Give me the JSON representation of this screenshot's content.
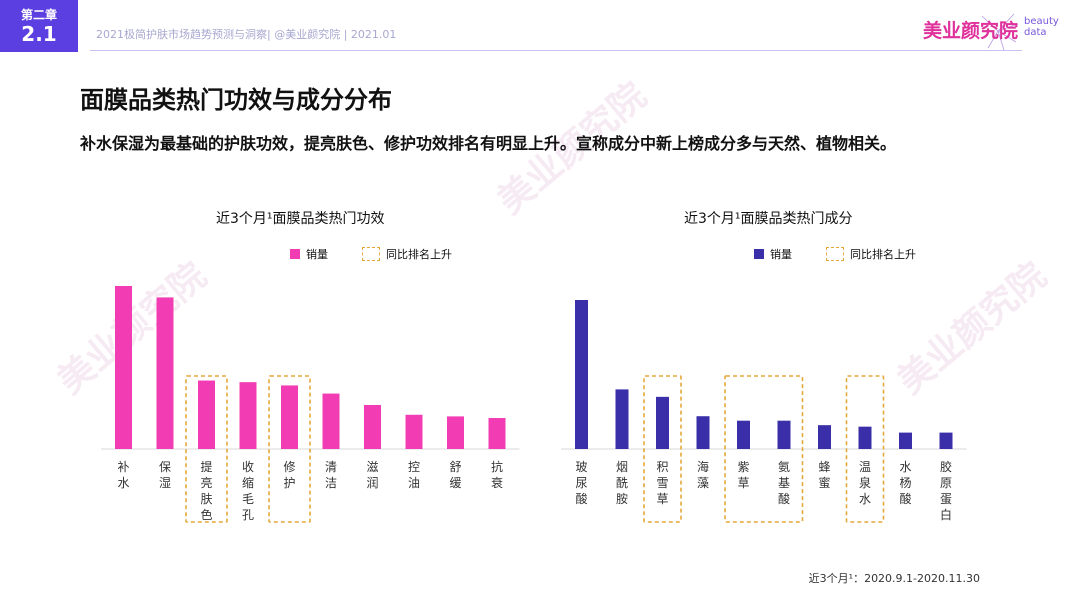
{
  "header": {
    "chapter_label": "第二章",
    "chapter_number": "2.1",
    "breadcrumb": "2021极简护肤市场趋势预测与洞察| @美业颜究院 | 2021.01",
    "logo_text": "美业颜究院",
    "logo_side": "beauty data"
  },
  "page": {
    "title": "面膜品类热门功效与成分分布",
    "description": "补水保湿为最基础的护肤功效，提亮肤色、修护功效排名有明显上升。宣称成分中新上榜成分多与天然、植物相关。",
    "footnote": "近3个月¹：2020.9.1-2020.11.30",
    "watermark_text": "美业颜究院"
  },
  "legend": {
    "sales_label": "销量",
    "rising_label": "同比排名上升"
  },
  "colors": {
    "pink": "#f23cb3",
    "navy": "#3a2fa8",
    "dashed": "#e4a93c",
    "brand": "#5b3fe0"
  },
  "chart_data": [
    {
      "type": "bar",
      "title": "近3个月¹面膜品类热门功效",
      "categories": [
        "补水",
        "保湿",
        "提亮肤色",
        "收缩毛孔",
        "修护",
        "清洁",
        "滋润",
        "控油",
        "舒缓",
        "抗衰"
      ],
      "series": [
        {
          "name": "销量",
          "values": [
            100,
            93,
            42,
            41,
            39,
            34,
            27,
            21,
            20,
            19
          ]
        }
      ],
      "highlight_groups": [
        [
          2
        ],
        [
          4
        ]
      ],
      "legend_position": "top"
    },
    {
      "type": "bar",
      "title": "近3个月¹面膜品类热门成分",
      "categories": [
        "玻尿酸",
        "烟酰胺",
        "积雪草",
        "海藻",
        "紫草",
        "氨基酸",
        "蜂蜜",
        "温泉水",
        "水杨酸",
        "胶原蛋白"
      ],
      "series": [
        {
          "name": "销量",
          "values": [
            100,
            40,
            35,
            22,
            19,
            19,
            16,
            15,
            11,
            11
          ]
        }
      ],
      "highlight_groups": [
        [
          2
        ],
        [
          4,
          5
        ],
        [
          7
        ]
      ],
      "legend_position": "top"
    }
  ]
}
